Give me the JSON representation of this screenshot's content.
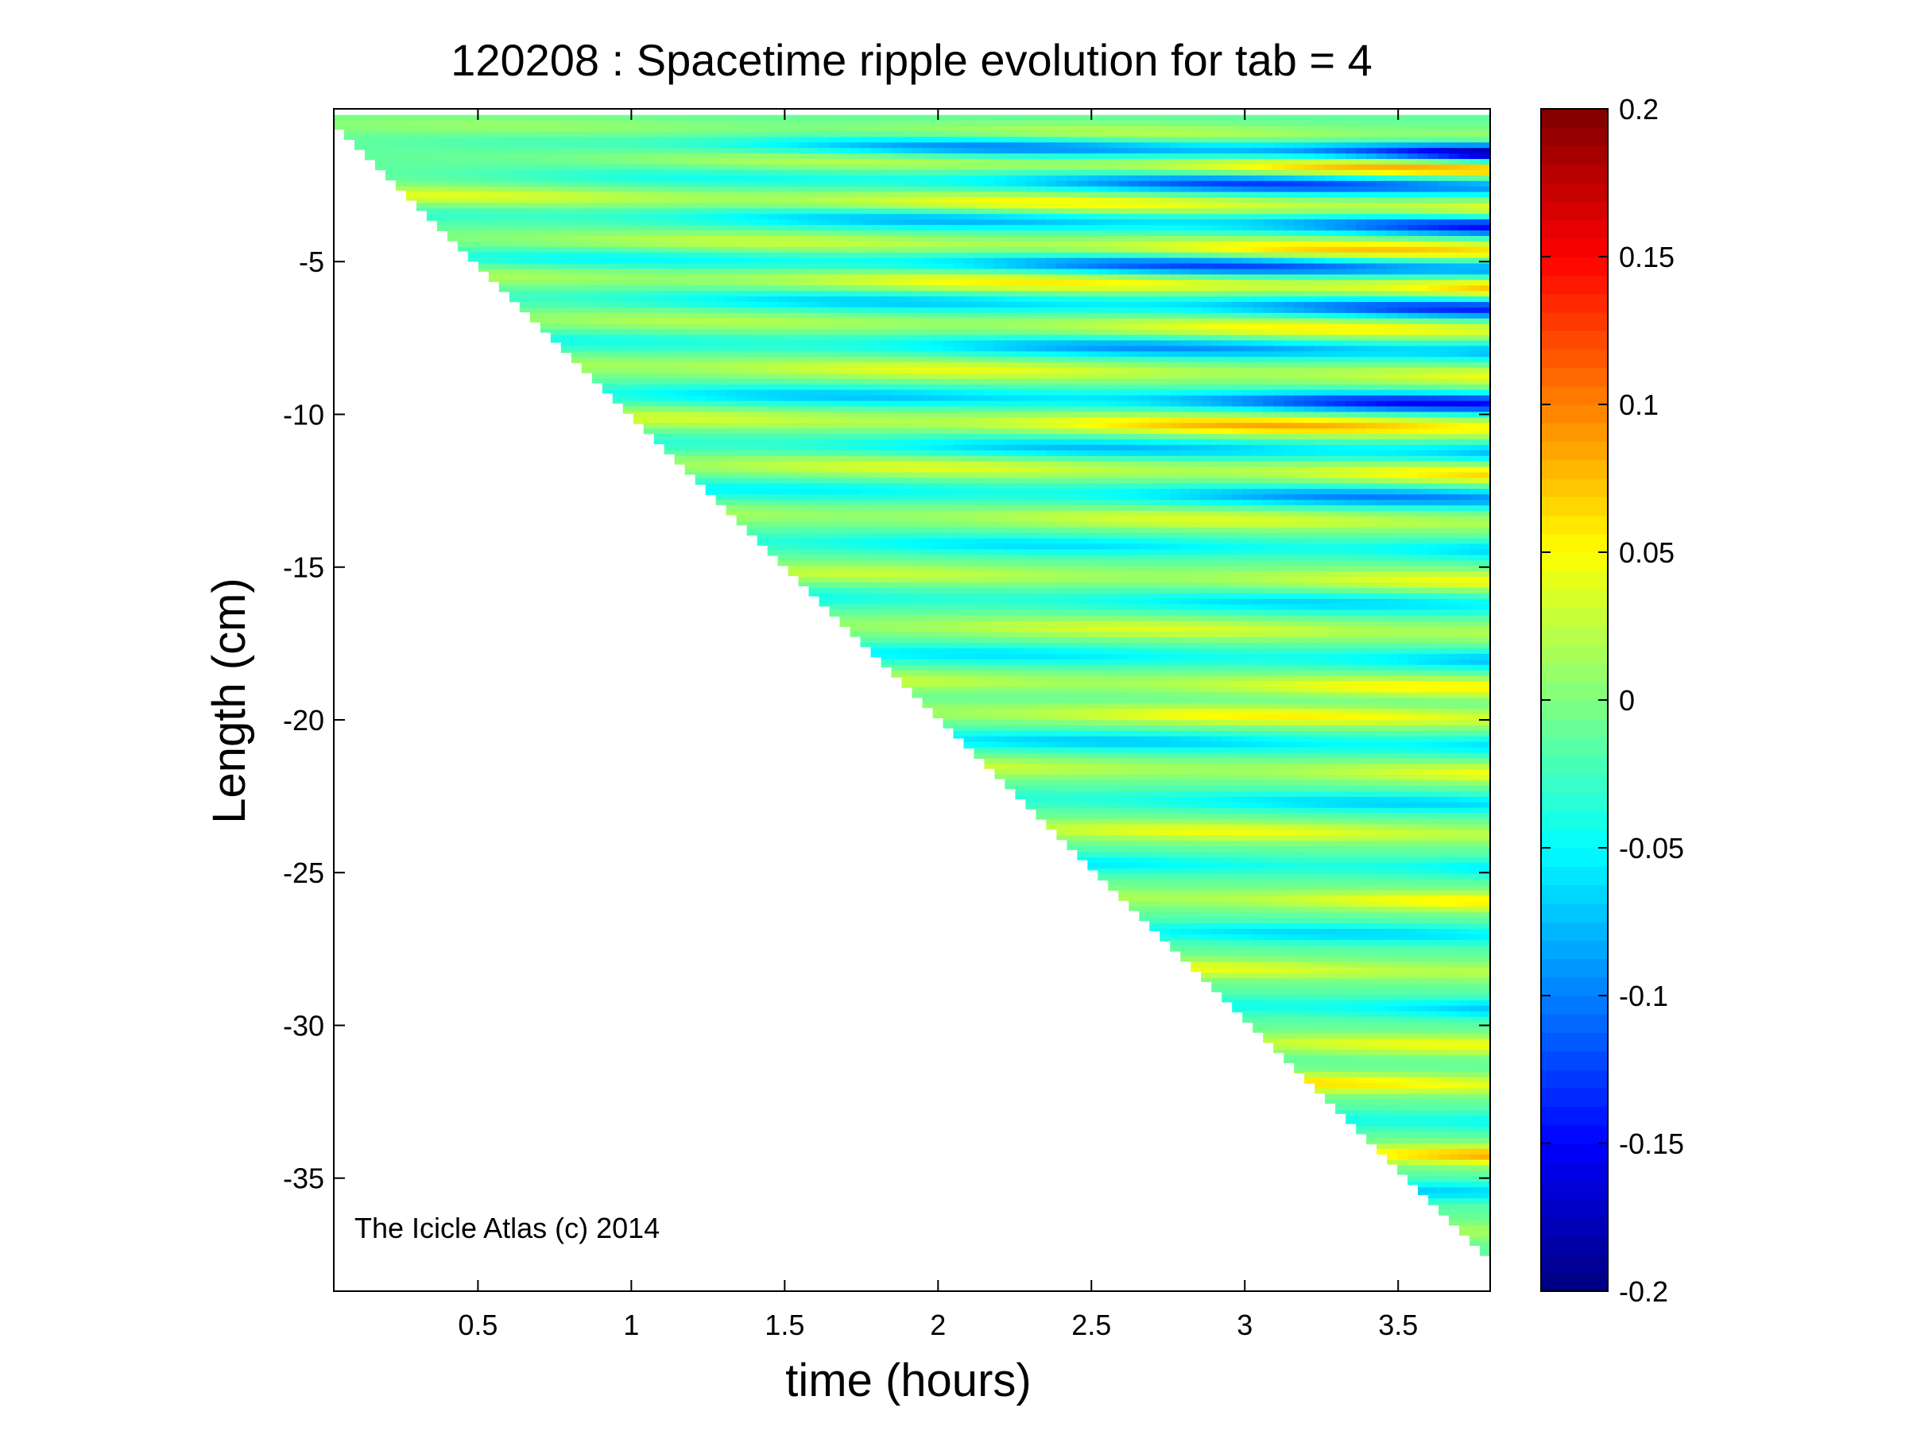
{
  "chart_data": {
    "type": "heatmap",
    "title": "120208 : Spacetime ripple evolution for tab = 4",
    "xlabel": "time (hours)",
    "ylabel": "Length (cm)",
    "xlim": [
      0.03,
      3.8
    ],
    "ylim": [
      -38.7,
      0.0
    ],
    "x_ticks": [
      0.5,
      1,
      1.5,
      2,
      2.5,
      3,
      3.5
    ],
    "x_tick_labels": [
      "0.5",
      "1",
      "1.5",
      "2",
      "2.5",
      "3",
      "3.5"
    ],
    "y_ticks": [
      -5,
      -10,
      -15,
      -20,
      -25,
      -30,
      -35
    ],
    "y_tick_labels": [
      "-5",
      "-10",
      "-15",
      "-20",
      "-25",
      "-30",
      "-35"
    ],
    "colorbar": {
      "colormap": "jet",
      "clim": [
        -0.2,
        0.2
      ],
      "ticks": [
        0.2,
        0.15,
        0.1,
        0.05,
        0,
        -0.05,
        -0.1,
        -0.15,
        -0.2
      ],
      "tick_labels": [
        "0.2",
        "0.15",
        "0.1",
        "0.05",
        "0",
        "-0.05",
        "-0.1",
        "-0.15",
        "-0.2"
      ]
    },
    "grid": false,
    "data_region": {
      "description": "triangular region bounded by the icicle tip position over time",
      "tip_length_at_start": -0.5,
      "tip_length_at_end": -37.7,
      "t_start": 0.03,
      "t_end": 3.8
    },
    "ripple_bands": [
      {
        "y": -0.5,
        "amp": 0.03,
        "strength": [
          0.02,
          0.05
        ]
      },
      {
        "y": -1.0,
        "amp": -0.05,
        "strength": [
          0.0,
          0.2
        ]
      },
      {
        "y": -1.5,
        "amp": 0.07,
        "strength": [
          0.0,
          0.12
        ]
      },
      {
        "y": -2.1,
        "amp": -0.06,
        "strength": [
          0.0,
          0.16
        ]
      },
      {
        "y": -2.8,
        "amp": 0.08,
        "strength": [
          0.05,
          0.08
        ]
      },
      {
        "y": -3.4,
        "amp": -0.08,
        "strength": [
          0.02,
          0.14
        ]
      },
      {
        "y": -4.2,
        "amp": 0.07,
        "strength": [
          0.02,
          0.1
        ]
      },
      {
        "y": -4.8,
        "amp": -0.09,
        "strength": [
          0.02,
          0.16
        ]
      },
      {
        "y": -5.4,
        "amp": 0.08,
        "strength": [
          0.03,
          0.11
        ]
      },
      {
        "y": -6.1,
        "amp": -0.07,
        "strength": [
          0.02,
          0.13
        ]
      },
      {
        "y": -6.8,
        "amp": 0.08,
        "strength": [
          0.02,
          0.08
        ]
      },
      {
        "y": -7.5,
        "amp": -0.06,
        "strength": [
          0.02,
          0.12
        ]
      },
      {
        "y": -8.3,
        "amp": 0.06,
        "strength": [
          0.05,
          0.06
        ]
      },
      {
        "y": -9.2,
        "amp": -0.08,
        "strength": [
          0.02,
          0.15
        ]
      },
      {
        "y": -10.0,
        "amp": 0.09,
        "strength": [
          0.03,
          0.12
        ]
      },
      {
        "y": -10.8,
        "amp": -0.06,
        "strength": [
          0.02,
          0.1
        ]
      },
      {
        "y": -11.5,
        "amp": 0.07,
        "strength": [
          0.03,
          0.08
        ]
      },
      {
        "y": -12.3,
        "amp": -0.05,
        "strength": [
          0.02,
          0.1
        ]
      },
      {
        "y": -13.1,
        "amp": 0.05,
        "strength": [
          0.03,
          0.06
        ]
      },
      {
        "y": -14.0,
        "amp": -0.05,
        "strength": [
          0.03,
          0.07
        ]
      },
      {
        "y": -15.0,
        "amp": 0.05,
        "strength": [
          0.03,
          0.06
        ]
      },
      {
        "y": -15.8,
        "amp": -0.04,
        "strength": [
          0.03,
          0.06
        ]
      },
      {
        "y": -16.7,
        "amp": 0.05,
        "strength": [
          0.03,
          0.06
        ]
      },
      {
        "y": -17.6,
        "amp": -0.05,
        "strength": [
          0.03,
          0.07
        ]
      },
      {
        "y": -18.5,
        "amp": 0.05,
        "strength": [
          0.03,
          0.07
        ]
      },
      {
        "y": -19.5,
        "amp": 0.06,
        "strength": [
          0.03,
          0.08
        ]
      },
      {
        "y": -20.4,
        "amp": -0.06,
        "strength": [
          0.03,
          0.08
        ]
      },
      {
        "y": -21.3,
        "amp": 0.05,
        "strength": [
          0.03,
          0.06
        ]
      },
      {
        "y": -22.3,
        "amp": -0.04,
        "strength": [
          0.03,
          0.06
        ]
      },
      {
        "y": -23.3,
        "amp": 0.05,
        "strength": [
          0.03,
          0.07
        ]
      },
      {
        "y": -24.4,
        "amp": -0.04,
        "strength": [
          0.03,
          0.06
        ]
      },
      {
        "y": -25.5,
        "amp": 0.05,
        "strength": [
          0.03,
          0.07
        ]
      },
      {
        "y": -26.6,
        "amp": -0.04,
        "strength": [
          0.03,
          0.06
        ]
      },
      {
        "y": -27.8,
        "amp": 0.05,
        "strength": [
          0.03,
          0.07
        ]
      },
      {
        "y": -29.0,
        "amp": -0.05,
        "strength": [
          0.03,
          0.07
        ]
      },
      {
        "y": -30.2,
        "amp": 0.05,
        "strength": [
          0.03,
          0.06
        ]
      },
      {
        "y": -31.5,
        "amp": 0.07,
        "strength": [
          0.03,
          0.09
        ]
      },
      {
        "y": -32.7,
        "amp": -0.05,
        "strength": [
          0.03,
          0.06
        ]
      },
      {
        "y": -33.8,
        "amp": 0.08,
        "strength": [
          0.03,
          0.1
        ]
      },
      {
        "y": -35.0,
        "amp": -0.05,
        "strength": [
          0.03,
          0.06
        ]
      },
      {
        "y": -36.3,
        "amp": 0.04,
        "strength": [
          0.03,
          0.05
        ]
      }
    ],
    "annotation": "The Icicle Atlas (c) 2014"
  }
}
